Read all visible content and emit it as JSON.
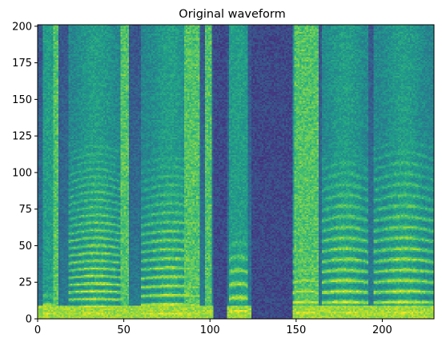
{
  "chart_data": {
    "type": "heatmap",
    "title": "Original waveform",
    "xlabel": "",
    "ylabel": "",
    "xlim": [
      0,
      230
    ],
    "ylim": [
      0,
      201
    ],
    "x_ticks": [
      0,
      50,
      100,
      150,
      200
    ],
    "y_ticks": [
      0,
      25,
      50,
      75,
      100,
      125,
      150,
      175,
      200
    ],
    "colormap": "viridis",
    "grid": false,
    "legend": "none",
    "columns": 230,
    "rows": 201,
    "bright_low_band": {
      "y_from": 0,
      "y_to": 8
    },
    "voiced_segments": [
      {
        "x_start": 3,
        "x_end": 9,
        "harmonic_spacing": 6.0,
        "harmonic_top": 20
      },
      {
        "x_start": 18,
        "x_end": 49,
        "harmonic_spacing": 5.0,
        "harmonic_top": 120
      },
      {
        "x_start": 60,
        "x_end": 93,
        "harmonic_spacing": 6.0,
        "harmonic_top": 110
      },
      {
        "x_start": 111,
        "x_end": 121,
        "harmonic_spacing": 9.0,
        "harmonic_top": 60
      },
      {
        "x_start": 148,
        "x_end": 162,
        "harmonic_spacing": 7.0,
        "harmonic_top": 70
      },
      {
        "x_start": 165,
        "x_end": 191,
        "harmonic_spacing": 7.0,
        "harmonic_top": 110
      },
      {
        "x_start": 195,
        "x_end": 229,
        "harmonic_spacing": 7.0,
        "harmonic_top": 120
      }
    ],
    "fricative_columns": [
      {
        "x_start": 9,
        "x_end": 11
      },
      {
        "x_start": 48,
        "x_end": 52
      },
      {
        "x_start": 85,
        "x_end": 93
      },
      {
        "x_start": 97,
        "x_end": 100
      },
      {
        "x_start": 149,
        "x_end": 162
      }
    ],
    "quiet_gaps": [
      {
        "x_start": 124,
        "x_end": 147
      },
      {
        "x_start": 102,
        "x_end": 109
      }
    ]
  }
}
